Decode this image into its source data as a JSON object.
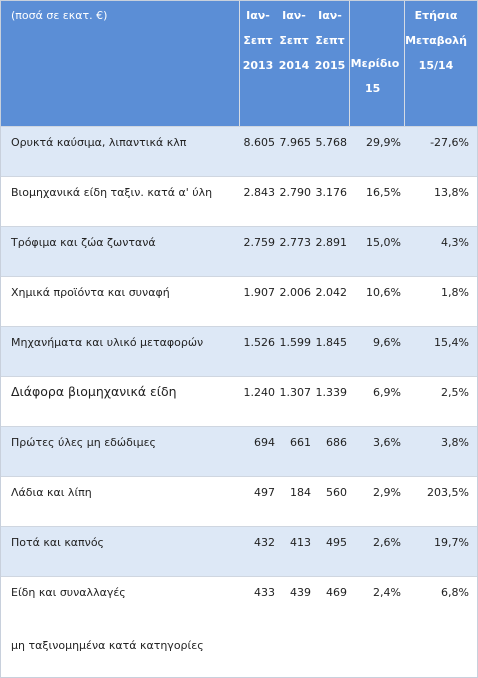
{
  "header": {
    "amount_note": "(ποσά σε εκατ. €)",
    "col_2013": [
      "Ιαν-",
      "Σεπτ",
      "2013"
    ],
    "col_2014": [
      "Ιαν-",
      "Σεπτ",
      "2014"
    ],
    "col_2015": [
      "Ιαν-",
      "Σεπτ",
      "2015"
    ],
    "share": [
      "Μερίδιο",
      "15"
    ],
    "change": [
      "Ετήσια",
      "Μεταβολή",
      "15/14"
    ]
  },
  "rows": [
    {
      "name": "Ορυκτά καύσιμα, λιπαντικά κλπ",
      "v2013": "8.605",
      "v2014": "7.965",
      "v2015": "5.768",
      "share": "29,9%",
      "change": "-27,6%"
    },
    {
      "name": "Βιομηχανικά είδη ταξιν. κατά α' ύλη",
      "v2013": "2.843",
      "v2014": "2.790",
      "v2015": "3.176",
      "share": "16,5%",
      "change": "13,8%"
    },
    {
      "name": "Τρόφιμα και ζώα ζωντανά",
      "v2013": "2.759",
      "v2014": "2.773",
      "v2015": "2.891",
      "share": "15,0%",
      "change": "4,3%"
    },
    {
      "name": "Χημικά προϊόντα και συναφή",
      "v2013": "1.907",
      "v2014": "2.006",
      "v2015": "2.042",
      "share": "10,6%",
      "change": "1,8%"
    },
    {
      "name": "Μηχανήματα και υλικό μεταφορών",
      "v2013": "1.526",
      "v2014": "1.599",
      "v2015": "1.845",
      "share": "9,6%",
      "change": "15,4%"
    },
    {
      "name": "Διάφορα βιομηχανικά είδη",
      "v2013": "1.240",
      "v2014": "1.307",
      "v2015": "1.339",
      "share": "6,9%",
      "change": "2,5%"
    },
    {
      "name": "Πρώτες ύλες μη εδώδιμες",
      "v2013": "694",
      "v2014": "661",
      "v2015": "686",
      "share": "3,6%",
      "change": "3,8%"
    },
    {
      "name": "Λάδια και λίπη",
      "v2013": "497",
      "v2014": "184",
      "v2015": "560",
      "share": "2,9%",
      "change": "203,5%"
    },
    {
      "name": "Ποτά και καπνός",
      "v2013": "432",
      "v2014": "413",
      "v2015": "495",
      "share": "2,6%",
      "change": "19,7%"
    },
    {
      "name": "Είδη και συναλλαγές",
      "name_line2": "μη ταξινομημένα κατά κατηγορίες",
      "v2013": "433",
      "v2014": "439",
      "v2015": "469",
      "share": "2,4%",
      "change": "6,8%"
    }
  ]
}
